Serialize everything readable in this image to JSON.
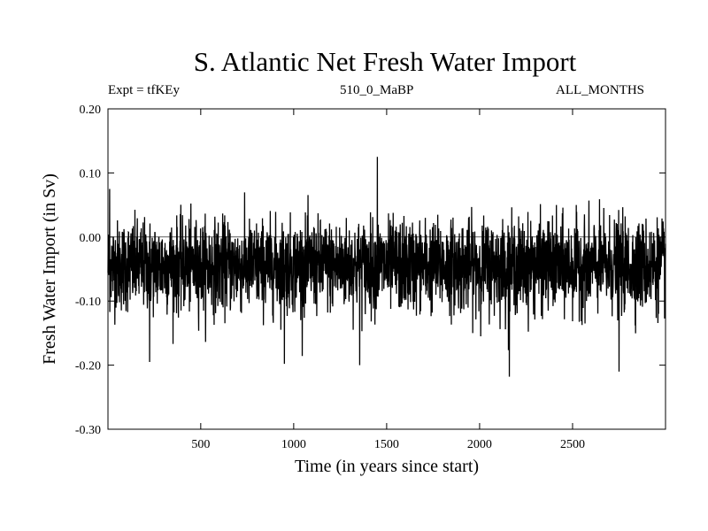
{
  "header": {
    "title": "S. Atlantic Net Fresh Water Import",
    "expt": "Expt = tfKEy",
    "run": "510_0_MaBP",
    "months": "ALL_MONTHS"
  },
  "chart_data": {
    "type": "line",
    "title": "S. Atlantic Net Fresh Water Import",
    "xlabel": "Time (in years since start)",
    "ylabel": "Fresh Water Import (in Sv)",
    "xlim": [
      1,
      3000
    ],
    "ylim": [
      -0.3,
      0.2
    ],
    "xticks": [
      500,
      1000,
      1500,
      2000,
      2500
    ],
    "yticks": [
      0.2,
      0.1,
      0.0,
      -0.1,
      -0.2,
      -0.3
    ],
    "ytick_labels": [
      "0.20",
      "0.10",
      "0.00",
      "-0.10",
      "-0.20",
      "-0.30"
    ],
    "line_color": "#000000",
    "grid": false,
    "series_stats": {
      "mean": -0.045,
      "std": 0.035,
      "points": 3000
    },
    "annotated_extremes": [
      {
        "x": 1450,
        "y": 0.125
      },
      {
        "x": 2160,
        "y": -0.218
      },
      {
        "x": 2750,
        "y": -0.21
      },
      {
        "x": 1355,
        "y": -0.2
      },
      {
        "x": 950,
        "y": -0.198
      },
      {
        "x": 225,
        "y": -0.195
      },
      {
        "x": 10,
        "y": 0.075
      }
    ]
  }
}
